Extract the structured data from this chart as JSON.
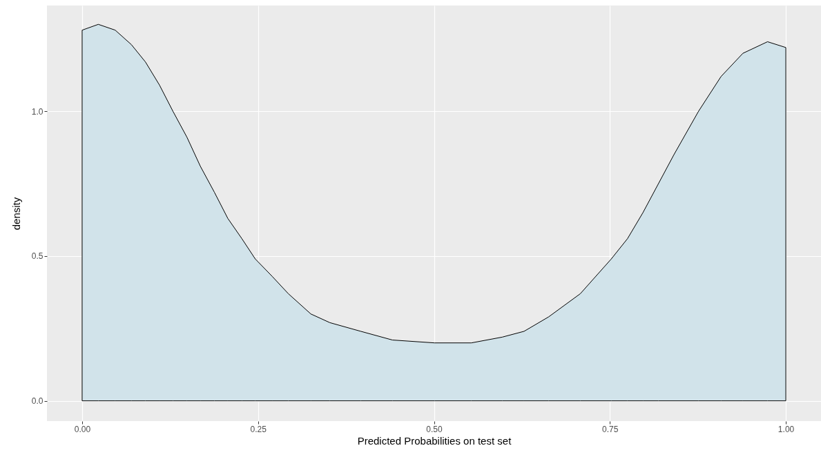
{
  "chart_data": {
    "type": "area",
    "xlabel": "Predicted Probabilities on test set",
    "ylabel": "density",
    "x": [
      0,
      0.023,
      0.047,
      0.07,
      0.09,
      0.11,
      0.129,
      0.149,
      0.168,
      0.188,
      0.207,
      0.227,
      0.246,
      0.27,
      0.293,
      0.325,
      0.352,
      0.396,
      0.441,
      0.501,
      0.553,
      0.597,
      0.628,
      0.663,
      0.708,
      0.752,
      0.775,
      0.797,
      0.819,
      0.841,
      0.876,
      0.908,
      0.939,
      0.974,
      1.0
    ],
    "series": [
      {
        "color": "#d1e3ea",
        "values": [
          1.28,
          1.3,
          1.28,
          1.23,
          1.17,
          1.09,
          1.0,
          0.91,
          0.81,
          0.72,
          0.63,
          0.56,
          0.49,
          0.43,
          0.37,
          0.3,
          0.27,
          0.24,
          0.21,
          0.2,
          0.2,
          0.22,
          0.24,
          0.29,
          0.37,
          0.49,
          0.56,
          0.65,
          0.75,
          0.85,
          1.0,
          1.12,
          1.2,
          1.24,
          1.22
        ]
      }
    ],
    "xlim": [
      -0.05,
      1.05
    ],
    "ylim": [
      -0.07,
      1.365
    ],
    "xticks": [
      {
        "value": 0,
        "label": "0.00"
      },
      {
        "value": 0.25,
        "label": "0.25"
      },
      {
        "value": 0.5,
        "label": "0.50"
      },
      {
        "value": 0.75,
        "label": "0.75"
      },
      {
        "value": 1,
        "label": "1.00"
      }
    ],
    "yticks": [
      {
        "value": 0,
        "label": "0.0"
      },
      {
        "value": 0.5,
        "label": "0.5"
      },
      {
        "value": 1,
        "label": "1.0"
      }
    ],
    "grid": true
  }
}
